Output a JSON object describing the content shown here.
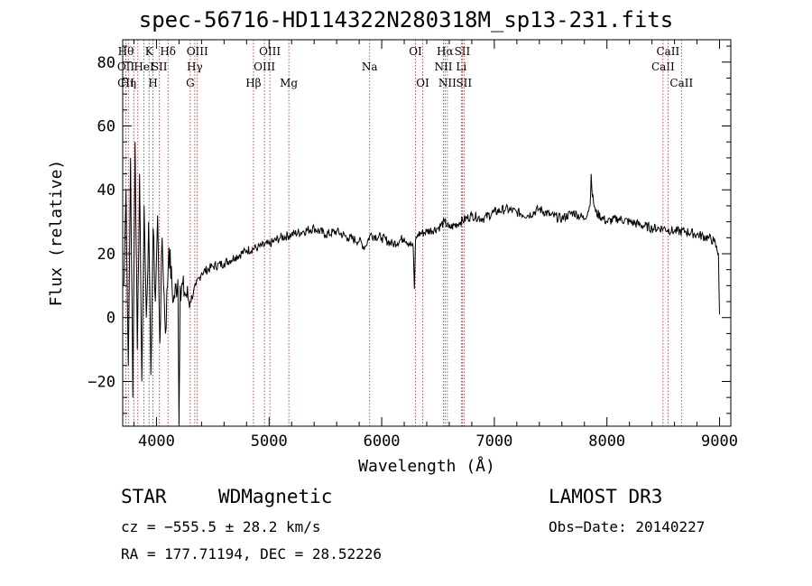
{
  "chart_data": {
    "type": "line",
    "title": "spec-56716-HD114322N280318M_sp13-231.fits",
    "xlabel": "Wavelength (Å)",
    "ylabel": "Flux (relative)",
    "xlim": [
      3700,
      9100
    ],
    "ylim": [
      -34,
      87
    ],
    "xticks": [
      4000,
      5000,
      6000,
      7000,
      8000,
      9000
    ],
    "yticks": [
      -20,
      0,
      20,
      40,
      60,
      80
    ],
    "grid": false,
    "series": [
      {
        "name": "flux",
        "x": [
          3710,
          3730,
          3750,
          3770,
          3790,
          3810,
          3830,
          3850,
          3870,
          3890,
          3910,
          3930,
          3950,
          3970,
          3990,
          4010,
          4030,
          4050,
          4080,
          4110,
          4150,
          4190,
          4200,
          4210,
          4250,
          4300,
          4350,
          4400,
          4500,
          4600,
          4700,
          4800,
          4900,
          5000,
          5100,
          5200,
          5300,
          5400,
          5500,
          5600,
          5700,
          5800,
          5850,
          5900,
          6000,
          6100,
          6200,
          6280,
          6290,
          6300,
          6310,
          6320,
          6400,
          6500,
          6560,
          6600,
          6700,
          6800,
          6900,
          7000,
          7100,
          7200,
          7300,
          7400,
          7500,
          7600,
          7700,
          7800,
          7850,
          7860,
          7870,
          7900,
          8000,
          8100,
          8200,
          8300,
          8400,
          8500,
          8600,
          8700,
          8800,
          8900,
          8950,
          8990,
          9000
        ],
        "y": [
          10,
          40,
          -15,
          50,
          -25,
          55,
          -10,
          45,
          -20,
          35,
          0,
          30,
          -18,
          28,
          5,
          32,
          -8,
          25,
          -5,
          22,
          5,
          12,
          -33,
          10,
          8,
          5,
          10,
          14,
          16,
          17,
          19,
          21,
          22,
          23,
          25,
          26,
          27,
          28,
          26,
          27,
          25,
          24,
          22,
          26,
          25,
          23,
          25,
          22,
          9,
          24,
          25,
          26,
          27,
          28,
          30,
          28,
          30,
          32,
          31,
          33,
          34,
          33,
          32,
          34,
          32,
          31,
          33,
          31,
          35,
          45,
          38,
          33,
          30,
          31,
          30,
          29,
          28,
          28,
          27,
          27,
          26,
          25,
          24,
          20,
          1
        ]
      }
    ],
    "line_markers": [
      {
        "wave": 3728,
        "top": "Hθ",
        "mid": "OII",
        "low": "CII"
      },
      {
        "wave": 3750,
        "top": "",
        "mid": "",
        "low": "Hη"
      },
      {
        "wave": 3798,
        "top": "",
        "mid": "",
        "low": ""
      },
      {
        "wave": 3835,
        "top": "",
        "mid": "",
        "low": ""
      },
      {
        "wave": 3889,
        "top": "",
        "mid": "HeI",
        "low": ""
      },
      {
        "wave": 3934,
        "top": "K",
        "mid": "",
        "low": ""
      },
      {
        "wave": 3969,
        "top": "",
        "mid": "",
        "low": "H"
      },
      {
        "wave": 4026,
        "top": "",
        "mid": "SII",
        "low": ""
      },
      {
        "wave": 4102,
        "top": "Hδ",
        "mid": "",
        "low": ""
      },
      {
        "wave": 4300,
        "top": "",
        "mid": "",
        "low": "G"
      },
      {
        "wave": 4340,
        "top": "",
        "mid": "Hγ",
        "low": ""
      },
      {
        "wave": 4363,
        "top": "OIII",
        "mid": "",
        "low": ""
      },
      {
        "wave": 4861,
        "top": "",
        "mid": "",
        "low": "Hβ"
      },
      {
        "wave": 4959,
        "top": "",
        "mid": "OIII",
        "low": ""
      },
      {
        "wave": 5007,
        "top": "OIII",
        "mid": "",
        "low": ""
      },
      {
        "wave": 5175,
        "top": "",
        "mid": "",
        "low": "Mg"
      },
      {
        "wave": 5893,
        "top": "",
        "mid": "Na",
        "low": ""
      },
      {
        "wave": 6300,
        "top": "OI",
        "mid": "",
        "low": ""
      },
      {
        "wave": 6364,
        "top": "",
        "mid": "",
        "low": "OI"
      },
      {
        "wave": 6548,
        "top": "",
        "mid": "NII",
        "low": ""
      },
      {
        "wave": 6563,
        "top": "Hα",
        "mid": "",
        "low": ""
      },
      {
        "wave": 6583,
        "top": "",
        "mid": "",
        "low": "NII"
      },
      {
        "wave": 6707,
        "top": "",
        "mid": "Li",
        "low": ""
      },
      {
        "wave": 6716,
        "top": "SII",
        "mid": "",
        "low": ""
      },
      {
        "wave": 6731,
        "top": "",
        "mid": "",
        "low": "SII"
      },
      {
        "wave": 8498,
        "top": "",
        "mid": "CaII",
        "low": ""
      },
      {
        "wave": 8542,
        "top": "CaII",
        "mid": "",
        "low": ""
      },
      {
        "wave": 8662,
        "top": "",
        "mid": "",
        "low": "CaII"
      }
    ]
  },
  "info": {
    "class": "STAR",
    "subclass": "WDMagnetic",
    "survey": "LAMOST DR3",
    "cz": "cz = −555.5 ± 28.2 km/s",
    "obs_date": "Obs−Date: 20140227",
    "coords": "RA = 177.71194, DEC =  28.52226"
  },
  "colors": {
    "axis": "#000000",
    "spectrum": "#000000",
    "marker": "#b22222"
  }
}
